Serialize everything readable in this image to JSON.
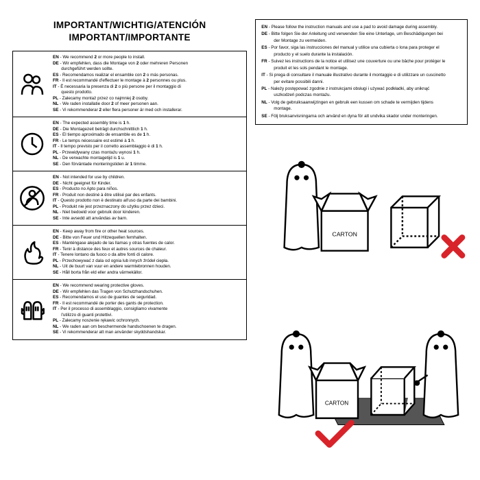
{
  "title_line1": "IMPORTANT/WICHTIG/ATENCIÓN",
  "title_line2": "IMPORTANT/IMPORTANTE",
  "colors": {
    "text": "#000000",
    "bg": "#ffffff",
    "border": "#000000",
    "wrong": "#d8232a",
    "right": "#d8232a",
    "mat": "#555555"
  },
  "left_sections": [
    {
      "icon": "people",
      "lines": [
        "EN - We recommend 2 or more people to install.",
        "DE - Wir empfehlen, dass die Montage von 2 oder mehreren Personen",
        "        durchgeführt werden sollte.",
        "ES - Recomendamos realizar el ensamble con 2 o más personas.",
        "FR - Il est recommandé d'effectuer le montage à 2 personnes ou plus.",
        "IT - È necessaria la presenza di 2 o più persone per il montaggio di",
        "        questo prodotto.",
        "PL - Zalecamy montaż przez co najmniej 2 osoby.",
        "NL - We raden installatie door 2 of meer personen aan.",
        "SE - Vi rekommenderar 2 eller flera personer är med och installerar."
      ]
    },
    {
      "icon": "clock",
      "lines": [
        "EN - The expected assembly time is 1 h.",
        "DE - Die Montagezeit beträgt durchschnittlich 1 h.",
        "ES - El tiempo aproximado de ensamble es de 1 h.",
        "FR - Le temps nécessaire est estimé à 1 h.",
        "IT - Il tempo previsto per il corretto assemblaggio è di 1 h.",
        "PL - Przewidywany czas montażu wynosi 1 h.",
        "NL - De verwachte montagetijd is 1 u.",
        "SE - Den förväntade monteringstiden är 1 timme."
      ]
    },
    {
      "icon": "child",
      "lines": [
        "EN - Not intended for use by children.",
        "DE - Nicht geeignet für Kinder.",
        "ES - Producto no Apto para niños.",
        "FR - Produit non destiné à être utilisé par des enfants.",
        "IT - Questo prodotto non è destinato all'uso da parte dei bambini.",
        "PL - Produkt nie jest przeznaczony do użytku przez dzieci.",
        "NL - Niet bedoeld voor gebruik door kinderen.",
        "SE - Inte avsedd att användas av barn."
      ]
    },
    {
      "icon": "fire",
      "lines": [
        "EN - Keep away from fire or other heat sources.",
        "DE - Bitte von Feuer und Hitzequellen fernhalten.",
        "ES - Manténgase alejado de las llamas y otras fuentes de calor.",
        "FR - Tenir à distance des feux et autres sources de chaleur.",
        "IT - Tenere lontano da fuoco o da altre fonti di calore.",
        "PL - Przechowywać z dala od ognia lub innych źródeł ciepła.",
        "NL - Uit de buurt van vuur en andere warmtebronnen houden.",
        "SE - Håll borta från eld eller andra värmekällor."
      ]
    },
    {
      "icon": "gloves",
      "lines": [
        "EN - We recommend wearing protective gloves.",
        "DE - Wir empfehlen das Tragen von Schutzhandschuhen.",
        "ES - Recomendamos el uso de guantes de seguridad.",
        "FR - Il est recommandé de porter des gants de protection.",
        "IT - Per il processo di assemblaggio, consigliamo vivamente",
        "        l'utilizzo di guanti protettivi.",
        "PL - Zalecamy noszenie rękawic ochronnych.",
        "NL - We raden aan om beschermende handschoenen te dragen.",
        "SE - Vi rekommenderar att man använder skyddshandskar."
      ]
    }
  ],
  "right_lines": [
    {
      "code": "EN",
      "text": "Please follow the instruction manuals and use a pad to avoid damage during assembly."
    },
    {
      "code": "DE",
      "text": "Bitte folgen Sie der Anleitung und verwenden Sie eine Unterlage, um Beschädigungen bei",
      "cont": "der Montage zu vermeiden."
    },
    {
      "code": "ES",
      "text": "Por favor, siga las instrucciones del manual y utilice una cubierta o lona para proteger el",
      "cont": "producto y el suelo durante la instalación."
    },
    {
      "code": "FR",
      "text": "Suivez les instructions de la notice et utilisez une couverture ou une bâche pour protéger le",
      "cont": "produit et les sols pendant le montage."
    },
    {
      "code": "IT",
      "text": "Si prega di consultare il manuale illustrativo durante il montaggio e di utilizzare un cuscinetto",
      "cont": "per evitare possibili danni."
    },
    {
      "code": "PL",
      "text": "Należy postępować zgodnie z instrukcjami obsługi i używać podkładki, aby uniknąć",
      "cont": "uszkodzeń podczas montażu."
    },
    {
      "code": "NL",
      "text": "Volg de gebruiksaanwijzingen en gebruik een kussen om schade te vermijden tijdens",
      "cont": "montage."
    },
    {
      "code": "SE",
      "text": "Följ bruksanvisningarna och använd en dyna för att undvika skador under monteringen."
    }
  ],
  "carton_label": "CARTON"
}
